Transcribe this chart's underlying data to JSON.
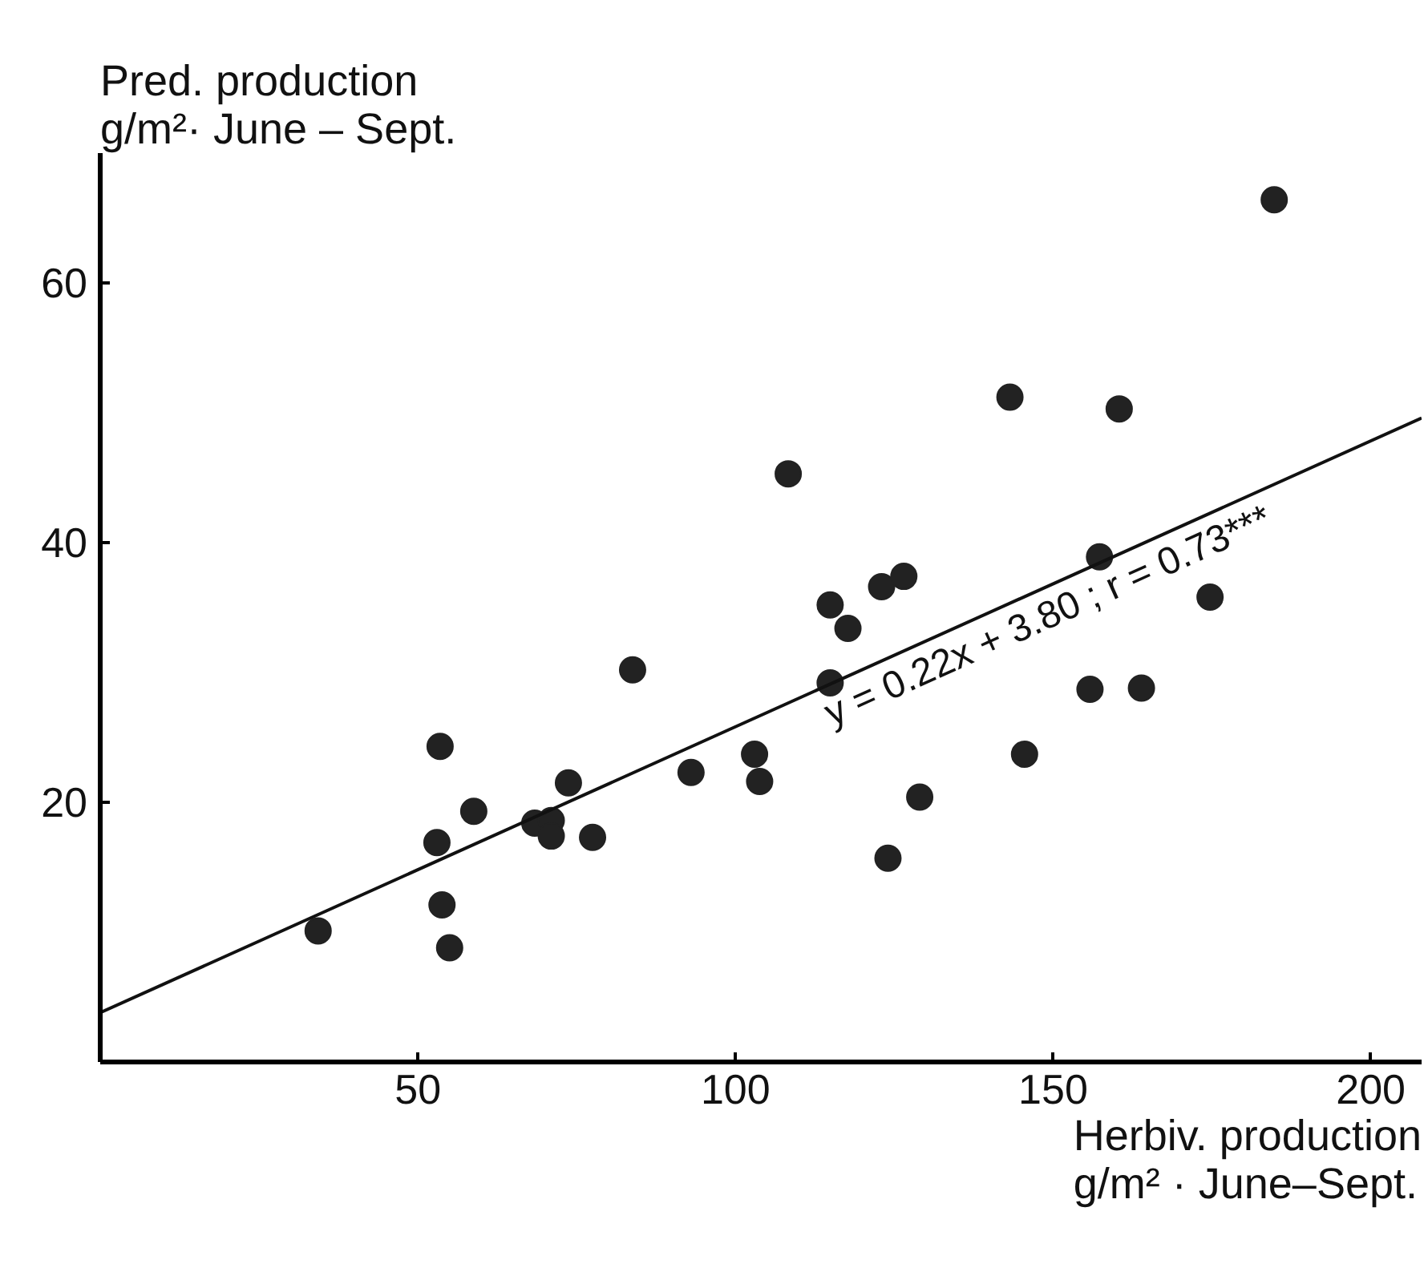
{
  "chart_data": {
    "type": "scatter",
    "xlabel": "Herbiv. production\ng/m² · June–Sept.",
    "ylabel": "Pred. production\ng/m²· June – Sept.",
    "xlim": [
      0,
      208
    ],
    "ylim": [
      0,
      70
    ],
    "xticks": [
      50,
      100,
      150,
      200
    ],
    "yticks": [
      20,
      40,
      60
    ],
    "grid": false,
    "series": [
      {
        "marker": "circle",
        "color": "#222222",
        "x": [
          34.3,
          53.5,
          53,
          53.8,
          55,
          58.8,
          73.7,
          68.4,
          71,
          71,
          77.5,
          83.8,
          93,
          103,
          103.8,
          184.8,
          143.2,
          160.4,
          108.3,
          157.3,
          174.7,
          114.9,
          117.7,
          123,
          126.5,
          114.9,
          155.8,
          163.9,
          145.5,
          129,
          124
        ],
        "values": [
          10.1,
          24.3,
          16.9,
          12.1,
          8.8,
          19.3,
          21.5,
          18.4,
          18.6,
          17.4,
          17.3,
          30.2,
          22.3,
          23.7,
          21.6,
          66.4,
          51.2,
          50.3,
          45.3,
          38.9,
          35.8,
          35.2,
          33.4,
          36.6,
          37.4,
          29.2,
          28.7,
          28.8,
          23.7,
          20.4,
          15.7
        ]
      },
      {
        "type": "line",
        "marker": "none",
        "color": "#111111",
        "x": [
          0,
          208
        ],
        "values": [
          3.8,
          49.6
        ]
      }
    ],
    "annotations": [
      {
        "text": "y = 0.22x + 3.80 ; r = 0.73***",
        "x": 113,
        "y": 28.2
      }
    ]
  }
}
